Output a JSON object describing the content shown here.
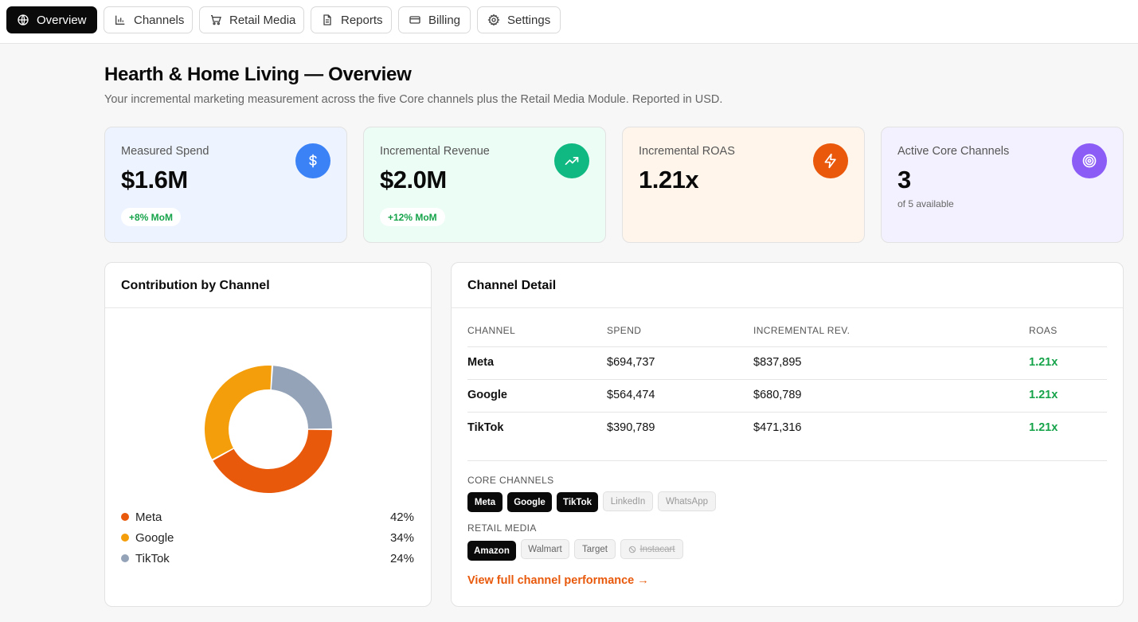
{
  "nav": {
    "tabs": [
      {
        "label": "Overview",
        "icon": "globe-icon",
        "active": true
      },
      {
        "label": "Channels",
        "icon": "bar-chart-icon",
        "active": false
      },
      {
        "label": "Retail Media",
        "icon": "shopping-cart-icon",
        "active": false
      },
      {
        "label": "Reports",
        "icon": "file-text-icon",
        "active": false
      },
      {
        "label": "Billing",
        "icon": "credit-card-icon",
        "active": false
      },
      {
        "label": "Settings",
        "icon": "gear-icon",
        "active": false
      }
    ]
  },
  "page": {
    "title": "Hearth & Home Living — Overview",
    "subtitle": "Your incremental marketing measurement across the five Core channels plus the Retail Media Module. Reported in USD."
  },
  "kpis": [
    {
      "label": "Measured Spend",
      "value": "$1.6M",
      "badge": "+8% MoM",
      "icon": "dollar-icon",
      "color": "#3b82f6",
      "bg": "#eef4ff"
    },
    {
      "label": "Incremental Revenue",
      "value": "$2.0M",
      "badge": "+12% MoM",
      "icon": "trending-up-icon",
      "color": "#10b981",
      "bg": "#ecfdf5"
    },
    {
      "label": "Incremental ROAS",
      "value": "1.21x",
      "icon": "lightning-icon",
      "color": "#ea580c",
      "bg": "#fff5eb"
    },
    {
      "label": "Active Core Channels",
      "value": "3",
      "note": "of 5 available",
      "icon": "target-icon",
      "color": "#8b5cf6",
      "bg": "#f3f1ff"
    }
  ],
  "contribution": {
    "title": "Contribution by Channel",
    "legend": [
      {
        "name": "Meta",
        "pct": "42%"
      },
      {
        "name": "Google",
        "pct": "34%"
      },
      {
        "name": "TikTok",
        "pct": "24%"
      }
    ]
  },
  "chart_data": {
    "type": "pie",
    "donut": true,
    "categories": [
      "Meta",
      "Google",
      "TikTok"
    ],
    "values": [
      42,
      34,
      24
    ],
    "colors": [
      "#e8590c",
      "#f59e0b",
      "#94a3b8"
    ]
  },
  "detail": {
    "title": "Channel Detail",
    "columns": [
      "CHANNEL",
      "SPEND",
      "INCREMENTAL REV.",
      "ROAS"
    ],
    "rows": [
      {
        "channel": "Meta",
        "spend": "$694,737",
        "rev": "$837,895",
        "roas": "1.21x"
      },
      {
        "channel": "Google",
        "spend": "$564,474",
        "rev": "$680,789",
        "roas": "1.21x"
      },
      {
        "channel": "TikTok",
        "spend": "$390,789",
        "rev": "$471,316",
        "roas": "1.21x"
      }
    ],
    "core_label": "CORE CHANNELS",
    "core_chips": [
      {
        "label": "Meta",
        "state": "on"
      },
      {
        "label": "Google",
        "state": "on"
      },
      {
        "label": "TikTok",
        "state": "on"
      },
      {
        "label": "LinkedIn",
        "state": "off"
      },
      {
        "label": "WhatsApp",
        "state": "off"
      }
    ],
    "retail_label": "RETAIL MEDIA",
    "retail_chips": [
      {
        "label": "Amazon",
        "state": "on"
      },
      {
        "label": "Walmart",
        "state": "avail"
      },
      {
        "label": "Target",
        "state": "avail"
      },
      {
        "label": "Instacart",
        "state": "blocked"
      }
    ],
    "link": "View full channel performance →"
  }
}
